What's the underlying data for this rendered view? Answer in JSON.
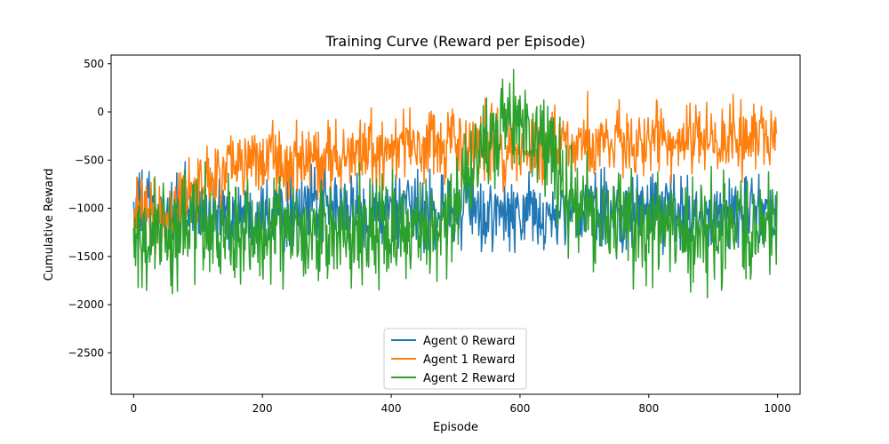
{
  "chart_data": {
    "type": "line",
    "title": "Training Curve (Reward per Episode)",
    "xlabel": "Episode",
    "ylabel": "Cumulative Reward",
    "xlim": [
      -35,
      1035
    ],
    "ylim": [
      -2930,
      590
    ],
    "xticks": [
      0,
      200,
      400,
      600,
      800,
      1000
    ],
    "yticks": [
      500,
      0,
      -500,
      -1000,
      -1500,
      -2000,
      -2500
    ],
    "xtick_labels": [
      "0",
      "200",
      "400",
      "600",
      "800",
      "1000"
    ],
    "ytick_labels": [
      "500",
      "0",
      "−500",
      "−1000",
      "−1500",
      "−2000",
      "−2500"
    ],
    "grid": false,
    "legend_position": "bottom-center",
    "episodes": {
      "start": 0,
      "end": 999,
      "step": 1
    },
    "series": [
      {
        "name": "Agent 0 Reward",
        "color": "#1f77b4",
        "keypoints": [
          [
            0,
            -1000
          ],
          [
            25,
            -1000
          ],
          [
            50,
            -1050
          ],
          [
            75,
            -1000
          ],
          [
            100,
            -1050
          ],
          [
            125,
            -1080
          ],
          [
            150,
            -1080
          ],
          [
            175,
            -1050
          ],
          [
            200,
            -1000
          ],
          [
            225,
            -1020
          ],
          [
            250,
            -1000
          ],
          [
            275,
            -1000
          ],
          [
            300,
            -1000
          ],
          [
            325,
            -1030
          ],
          [
            350,
            -1050
          ],
          [
            375,
            -1050
          ],
          [
            400,
            -1050
          ],
          [
            425,
            -1050
          ],
          [
            450,
            -1030
          ],
          [
            475,
            -1030
          ],
          [
            500,
            -1030
          ],
          [
            525,
            -1050
          ],
          [
            550,
            -1080
          ],
          [
            575,
            -1080
          ],
          [
            600,
            -1080
          ],
          [
            625,
            -1080
          ],
          [
            650,
            -1100
          ],
          [
            675,
            -1080
          ],
          [
            700,
            -1050
          ],
          [
            725,
            -1050
          ],
          [
            750,
            -1050
          ],
          [
            775,
            -1030
          ],
          [
            800,
            -1030
          ],
          [
            825,
            -1030
          ],
          [
            850,
            -1030
          ],
          [
            875,
            -1030
          ],
          [
            900,
            -1030
          ],
          [
            925,
            -1050
          ],
          [
            950,
            -1050
          ],
          [
            975,
            -1050
          ],
          [
            999,
            -1050
          ]
        ],
        "spread": 330,
        "y_range": [
          -2200,
          200
        ]
      },
      {
        "name": "Agent 1 Reward",
        "color": "#ff7f0e",
        "keypoints": [
          [
            0,
            -1000
          ],
          [
            25,
            -1050
          ],
          [
            50,
            -1150
          ],
          [
            75,
            -950
          ],
          [
            100,
            -800
          ],
          [
            125,
            -650
          ],
          [
            150,
            -500
          ],
          [
            175,
            -450
          ],
          [
            200,
            -500
          ],
          [
            225,
            -500
          ],
          [
            250,
            -520
          ],
          [
            275,
            -500
          ],
          [
            300,
            -480
          ],
          [
            325,
            -450
          ],
          [
            350,
            -430
          ],
          [
            375,
            -420
          ],
          [
            400,
            -400
          ],
          [
            425,
            -380
          ],
          [
            450,
            -380
          ],
          [
            475,
            -370
          ],
          [
            500,
            -350
          ],
          [
            525,
            -380
          ],
          [
            550,
            -420
          ],
          [
            575,
            -420
          ],
          [
            600,
            -420
          ],
          [
            625,
            -400
          ],
          [
            650,
            -350
          ],
          [
            675,
            -320
          ],
          [
            700,
            -300
          ],
          [
            725,
            -300
          ],
          [
            750,
            -300
          ],
          [
            775,
            -290
          ],
          [
            800,
            -290
          ],
          [
            825,
            -280
          ],
          [
            850,
            -280
          ],
          [
            875,
            -280
          ],
          [
            900,
            -280
          ],
          [
            925,
            -280
          ],
          [
            950,
            -280
          ],
          [
            975,
            -280
          ],
          [
            999,
            -280
          ]
        ],
        "spread": 330,
        "y_range": [
          -2350,
          410
        ]
      },
      {
        "name": "Agent 2 Reward",
        "color": "#2ca02c",
        "keypoints": [
          [
            0,
            -1350
          ],
          [
            25,
            -1300
          ],
          [
            50,
            -1250
          ],
          [
            75,
            -1200
          ],
          [
            100,
            -1150
          ],
          [
            125,
            -1200
          ],
          [
            150,
            -1250
          ],
          [
            175,
            -1250
          ],
          [
            200,
            -1250
          ],
          [
            225,
            -1250
          ],
          [
            250,
            -1270
          ],
          [
            275,
            -1300
          ],
          [
            300,
            -1300
          ],
          [
            325,
            -1280
          ],
          [
            350,
            -1250
          ],
          [
            375,
            -1230
          ],
          [
            400,
            -1230
          ],
          [
            425,
            -1230
          ],
          [
            450,
            -1230
          ],
          [
            475,
            -1200
          ],
          [
            500,
            -1000
          ],
          [
            525,
            -500
          ],
          [
            550,
            -250
          ],
          [
            575,
            -200
          ],
          [
            600,
            -200
          ],
          [
            625,
            -300
          ],
          [
            650,
            -500
          ],
          [
            675,
            -800
          ],
          [
            700,
            -1000
          ],
          [
            725,
            -1100
          ],
          [
            750,
            -1150
          ],
          [
            775,
            -1200
          ],
          [
            800,
            -1200
          ],
          [
            825,
            -1200
          ],
          [
            850,
            -1200
          ],
          [
            875,
            -1200
          ],
          [
            900,
            -1200
          ],
          [
            925,
            -1200
          ],
          [
            950,
            -1200
          ],
          [
            975,
            -1200
          ],
          [
            999,
            -1200
          ]
        ],
        "spread": 450,
        "y_range": [
          -2760,
          440
        ]
      }
    ]
  }
}
